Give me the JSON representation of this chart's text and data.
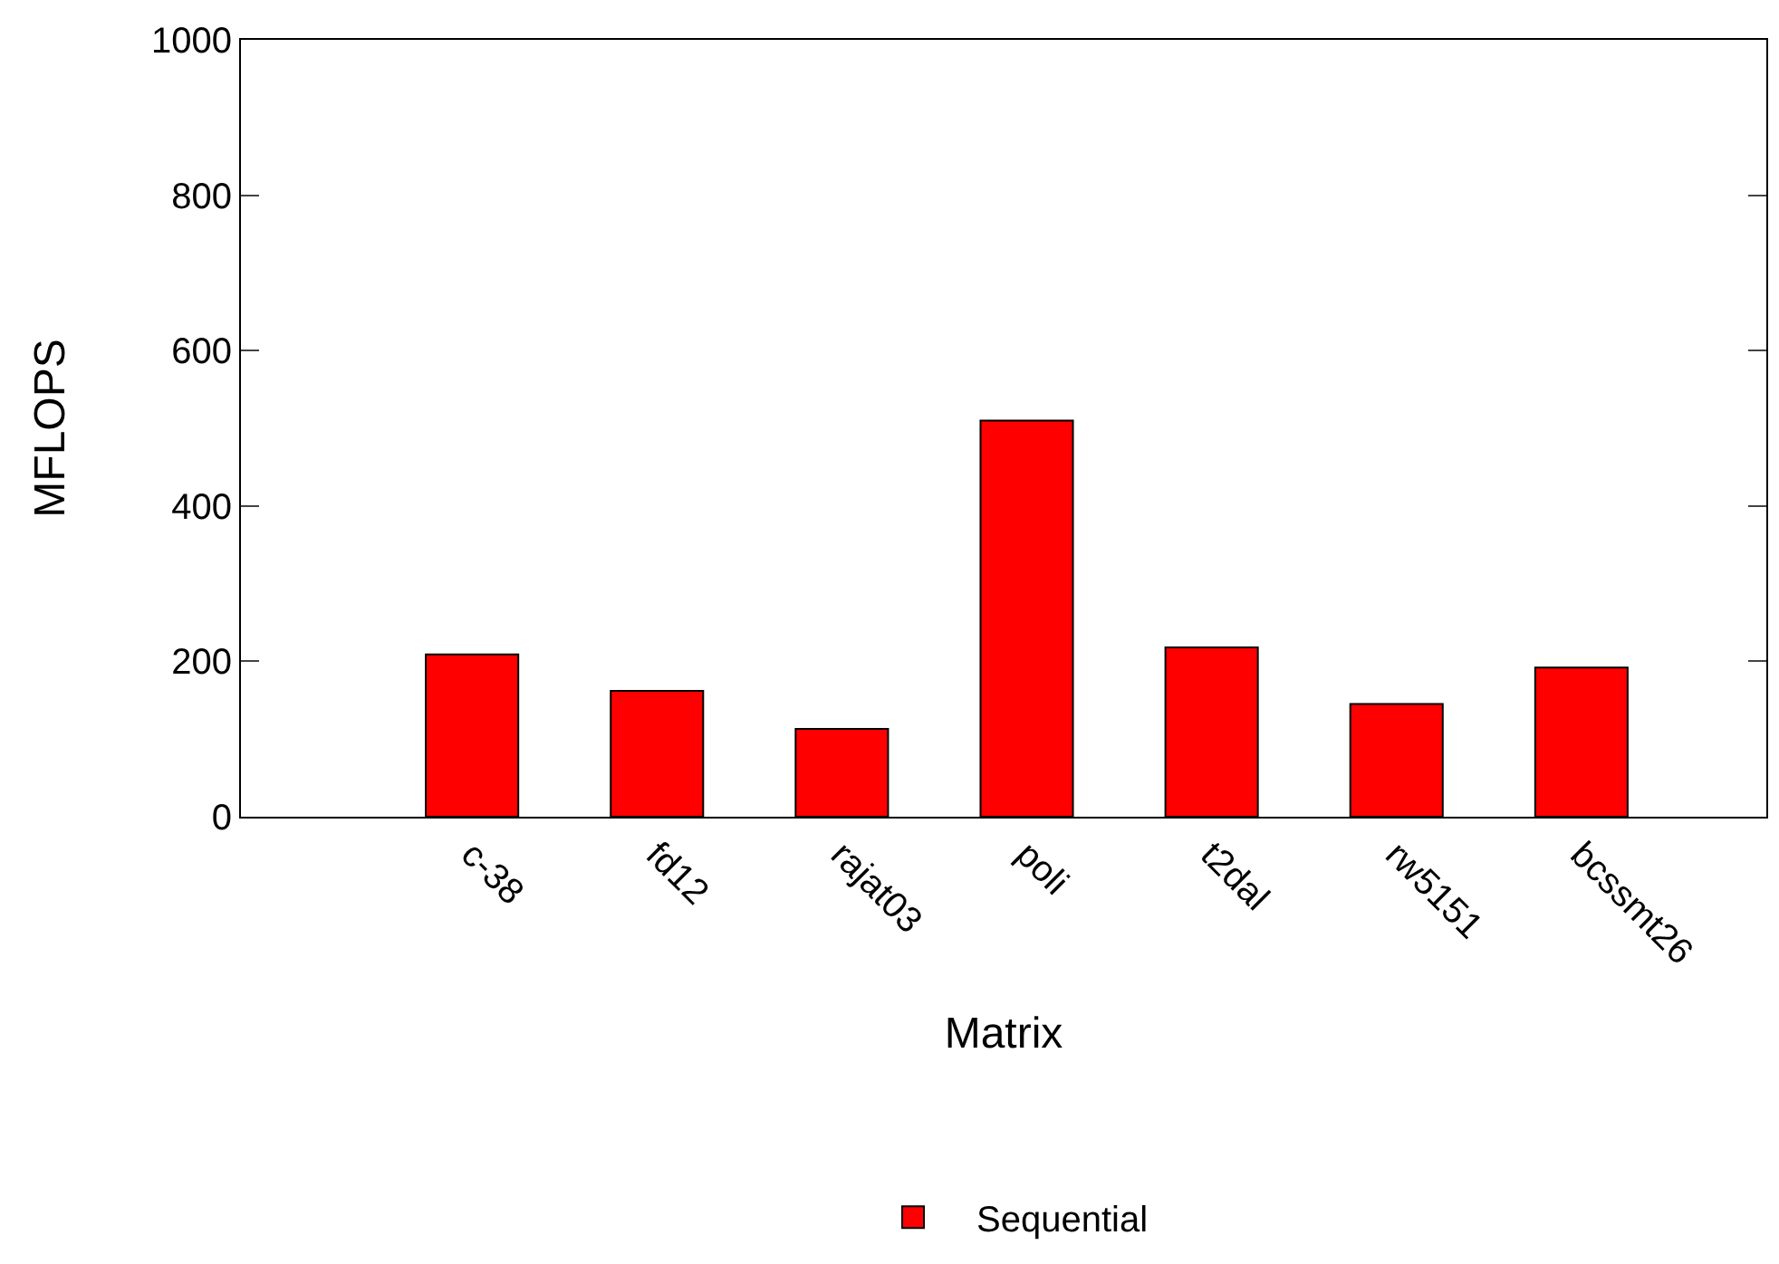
{
  "chart_data": {
    "type": "bar",
    "xlabel": "Matrix",
    "ylabel": "MFLOPS",
    "categories": [
      "c-38",
      "fd12",
      "rajat03",
      "poli",
      "t2dal",
      "rw5151",
      "bcssmt26"
    ],
    "series": [
      {
        "name": "Sequential",
        "color": "#ff0000",
        "values": [
          209,
          162,
          113,
          510,
          218,
          145,
          192
        ]
      }
    ],
    "ylim": [
      0,
      1000
    ],
    "yticks": [
      0,
      200,
      400,
      600,
      800,
      1000
    ],
    "legend": "bottom"
  }
}
